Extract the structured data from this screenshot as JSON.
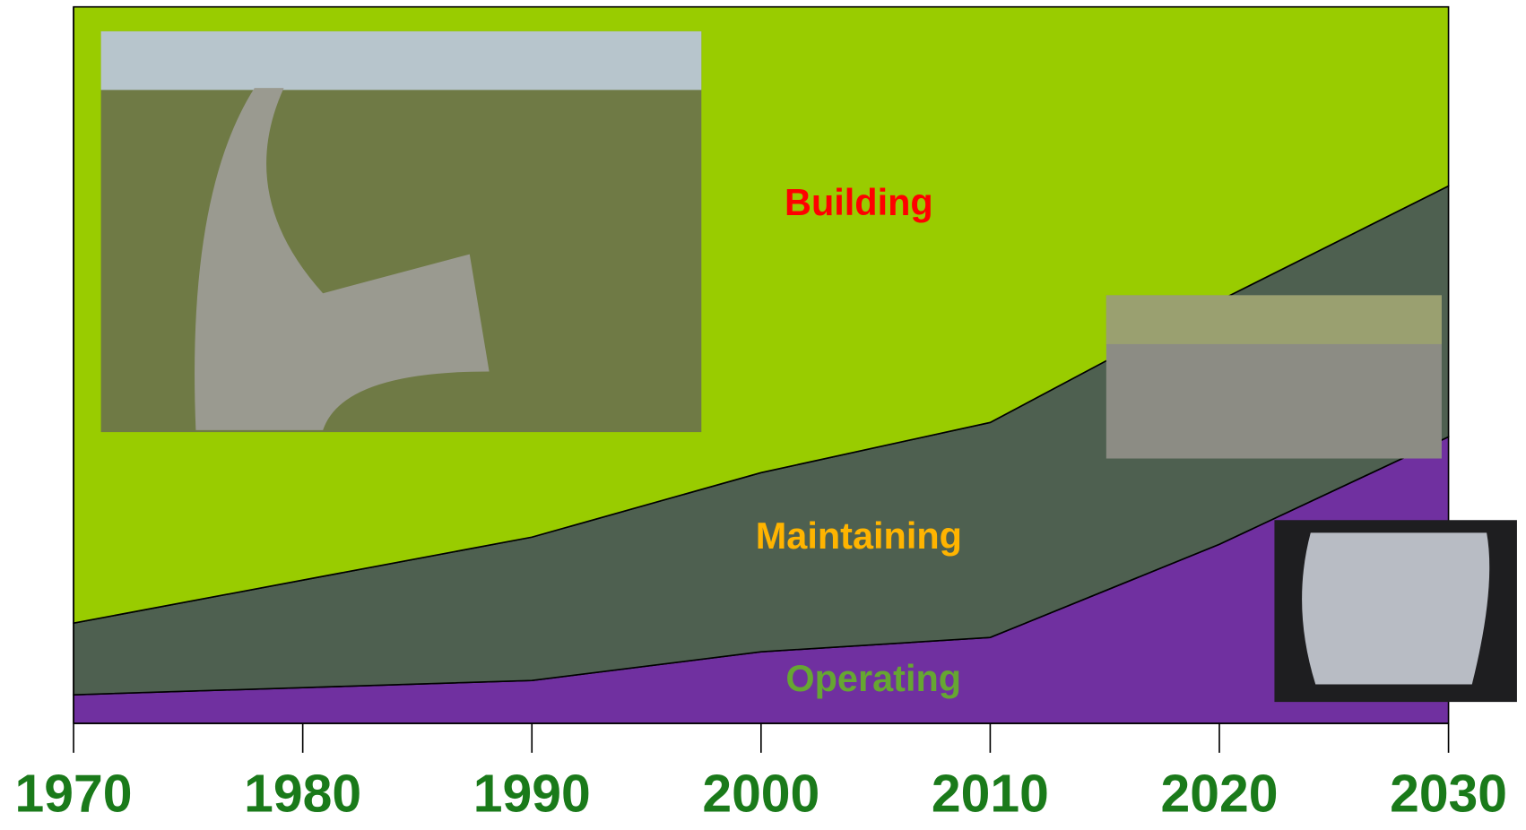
{
  "chart_data": {
    "type": "stacked_area",
    "x": [
      1970,
      1980,
      1990,
      2000,
      2010,
      2020,
      2030
    ],
    "xlim": [
      1970,
      2030
    ],
    "xticks": [
      1970,
      1980,
      1990,
      2000,
      2010,
      2020,
      2030
    ],
    "ylim": [
      0,
      100
    ],
    "series": [
      {
        "name": "Operating",
        "color": "#7030a0",
        "label_color": "#66a632",
        "values": [
          4,
          5,
          6,
          10,
          12,
          25,
          40
        ]
      },
      {
        "name": "Maintaining",
        "color": "#4e6050",
        "label_color": "#ffb400",
        "values": [
          10,
          15,
          20,
          25,
          30,
          34,
          35
        ]
      },
      {
        "name": "Building",
        "color": "#99cc00",
        "label_color": "#ff0000",
        "values": [
          86,
          80,
          74,
          65,
          58,
          41,
          25
        ]
      }
    ]
  }
}
